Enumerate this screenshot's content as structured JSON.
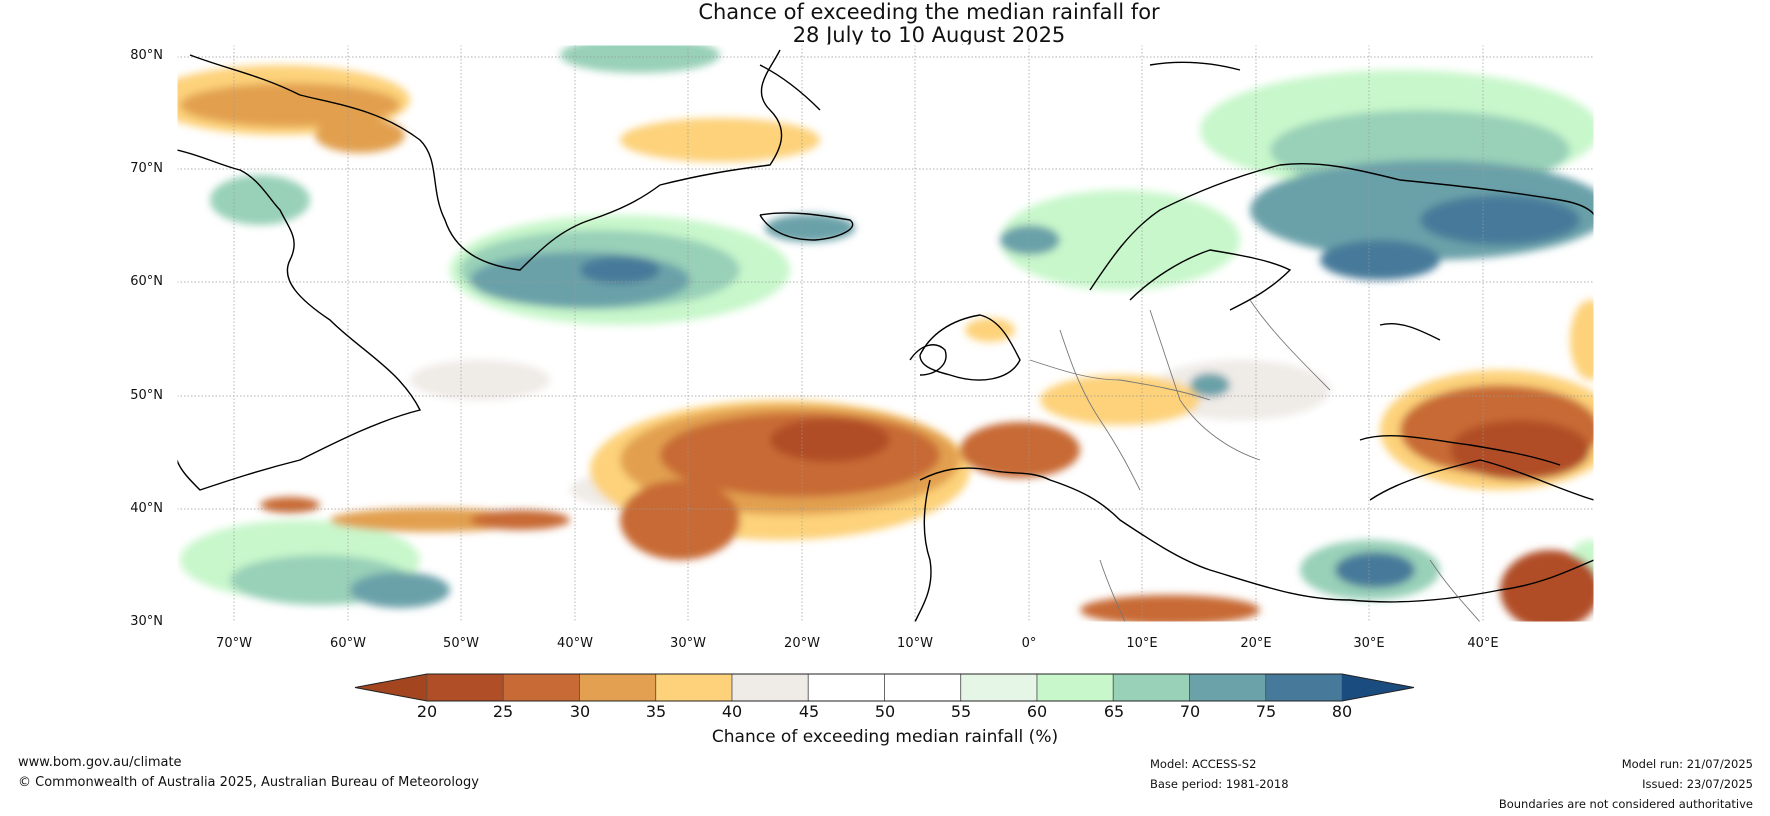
{
  "title_line1": "Chance of exceeding the median rainfall for",
  "title_line2": "28 July to 10 August 2025",
  "lat_labels": [
    "80°N",
    "70°N",
    "60°N",
    "50°N",
    "40°N",
    "30°N"
  ],
  "lon_labels": [
    "70°W",
    "60°W",
    "50°W",
    "40°W",
    "30°W",
    "20°W",
    "10°W",
    "0°",
    "10°E",
    "20°E",
    "30°E",
    "40°E"
  ],
  "colorbar": {
    "label": "Chance of exceeding median rainfall (%)",
    "ticks": [
      "20",
      "25",
      "30",
      "35",
      "40",
      "45",
      "50",
      "55",
      "60",
      "65",
      "70",
      "75",
      "80"
    ],
    "colors": [
      "#a3461f",
      "#b04e27",
      "#c86a35",
      "#e2a050",
      "#fdd27a",
      "#efebe7",
      "#ffffff",
      "#ffffff",
      "#e5f6e7",
      "#c8f7cb",
      "#98d0b8",
      "#6ba1a9",
      "#477a9a",
      "#1b4c80"
    ]
  },
  "footer": {
    "website": "www.bom.gov.au/climate",
    "copyright": "© Commonwealth of Australia 2025, Australian Bureau of Meteorology",
    "model": "Model: ACCESS-S2",
    "base_period": "Base period: 1981-2018",
    "model_run": "Model run: 21/07/2025",
    "issued": "Issued: 23/07/2025",
    "disclaimer": "Boundaries are not considered authoritative"
  }
}
